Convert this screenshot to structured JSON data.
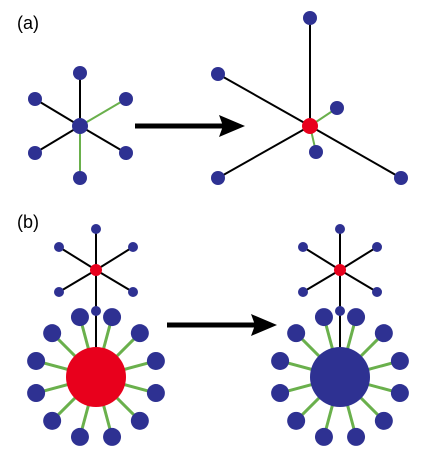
{
  "panels": [
    {
      "label": "(a)"
    },
    {
      "label": "(b)"
    }
  ],
  "colors": {
    "node_blue": "#2e3192",
    "node_red": "#e8001c",
    "edge_black": "#000000",
    "edge_green": "#6ab04c",
    "arrow": "#000000"
  }
}
